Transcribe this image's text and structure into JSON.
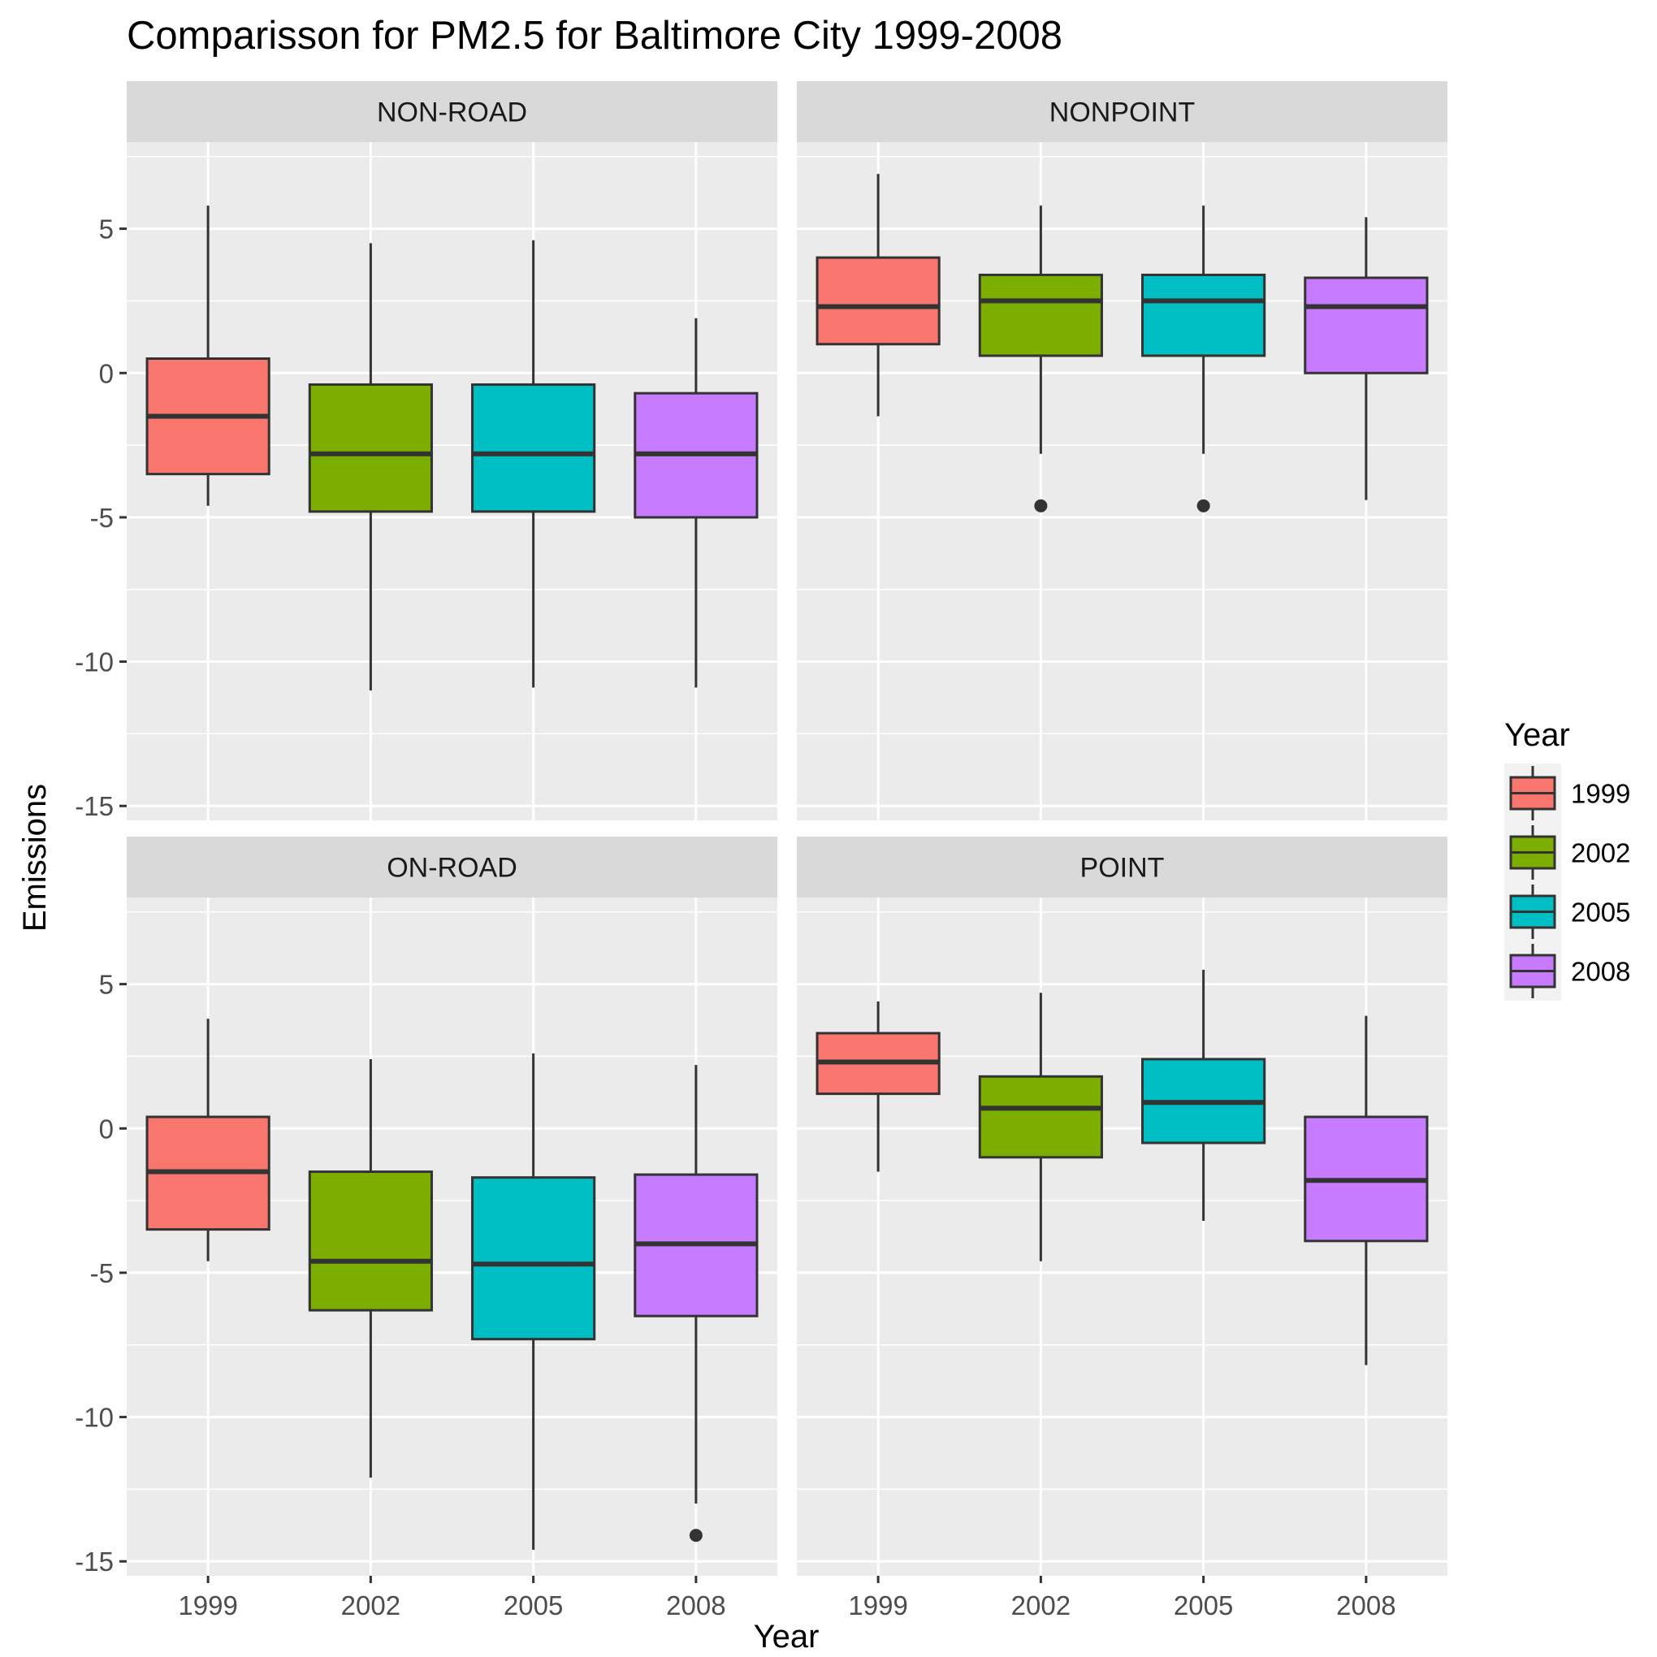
{
  "chart_data": {
    "type": "boxplot",
    "title": "Comparisson for PM2.5 for Baltimore City 1999-2008",
    "xlabel": "Year",
    "ylabel": "Emissions",
    "categories": [
      "1999",
      "2002",
      "2005",
      "2008"
    ],
    "ylim": [
      -15.5,
      8
    ],
    "yticks": [
      -15,
      -10,
      -5,
      0,
      5
    ],
    "grid": true,
    "legend": {
      "title": "Year",
      "position": "right",
      "entries": [
        "1999",
        "2002",
        "2005",
        "2008"
      ]
    },
    "colors": {
      "1999": "#F8766D",
      "2002": "#7CAE00",
      "2005": "#00BFC4",
      "2008": "#C77CFF",
      "panel_bg": "#EBEBEB",
      "strip_bg": "#D9D9D9",
      "grid": "#FFFFFF",
      "box_line": "#333333"
    },
    "panels": [
      {
        "name": "NON-ROAD",
        "boxes": [
          {
            "year": "1999",
            "whisker_low": -4.6,
            "q1": -3.5,
            "median": -1.5,
            "q3": 0.5,
            "whisker_high": 5.8,
            "outliers": []
          },
          {
            "year": "2002",
            "whisker_low": -11.0,
            "q1": -4.8,
            "median": -2.8,
            "q3": -0.4,
            "whisker_high": 4.5,
            "outliers": []
          },
          {
            "year": "2005",
            "whisker_low": -10.9,
            "q1": -4.8,
            "median": -2.8,
            "q3": -0.4,
            "whisker_high": 4.6,
            "outliers": []
          },
          {
            "year": "2008",
            "whisker_low": -10.9,
            "q1": -5.0,
            "median": -2.8,
            "q3": -0.7,
            "whisker_high": 1.9,
            "outliers": []
          }
        ]
      },
      {
        "name": "NONPOINT",
        "boxes": [
          {
            "year": "1999",
            "whisker_low": -1.5,
            "q1": 1.0,
            "median": 2.3,
            "q3": 4.0,
            "whisker_high": 6.9,
            "outliers": []
          },
          {
            "year": "2002",
            "whisker_low": -2.8,
            "q1": 0.6,
            "median": 2.5,
            "q3": 3.4,
            "whisker_high": 5.8,
            "outliers": [
              -4.6
            ]
          },
          {
            "year": "2005",
            "whisker_low": -2.8,
            "q1": 0.6,
            "median": 2.5,
            "q3": 3.4,
            "whisker_high": 5.8,
            "outliers": [
              -4.6
            ]
          },
          {
            "year": "2008",
            "whisker_low": -4.4,
            "q1": 0.0,
            "median": 2.3,
            "q3": 3.3,
            "whisker_high": 5.4,
            "outliers": []
          }
        ]
      },
      {
        "name": "ON-ROAD",
        "boxes": [
          {
            "year": "1999",
            "whisker_low": -4.6,
            "q1": -3.5,
            "median": -1.5,
            "q3": 0.4,
            "whisker_high": 3.8,
            "outliers": []
          },
          {
            "year": "2002",
            "whisker_low": -12.1,
            "q1": -6.3,
            "median": -4.6,
            "q3": -1.5,
            "whisker_high": 2.4,
            "outliers": []
          },
          {
            "year": "2005",
            "whisker_low": -14.6,
            "q1": -7.3,
            "median": -4.7,
            "q3": -1.7,
            "whisker_high": 2.6,
            "outliers": []
          },
          {
            "year": "2008",
            "whisker_low": -13.0,
            "q1": -6.5,
            "median": -4.0,
            "q3": -1.6,
            "whisker_high": 2.2,
            "outliers": [
              -14.1
            ]
          }
        ]
      },
      {
        "name": "POINT",
        "boxes": [
          {
            "year": "1999",
            "whisker_low": -1.5,
            "q1": 1.2,
            "median": 2.3,
            "q3": 3.3,
            "whisker_high": 4.4,
            "outliers": []
          },
          {
            "year": "2002",
            "whisker_low": -4.6,
            "q1": -1.0,
            "median": 0.7,
            "q3": 1.8,
            "whisker_high": 4.7,
            "outliers": []
          },
          {
            "year": "2005",
            "whisker_low": -3.2,
            "q1": -0.5,
            "median": 0.9,
            "q3": 2.4,
            "whisker_high": 5.5,
            "outliers": []
          },
          {
            "year": "2008",
            "whisker_low": -8.2,
            "q1": -3.9,
            "median": -1.8,
            "q3": 0.4,
            "whisker_high": 3.9,
            "outliers": []
          }
        ]
      }
    ]
  }
}
